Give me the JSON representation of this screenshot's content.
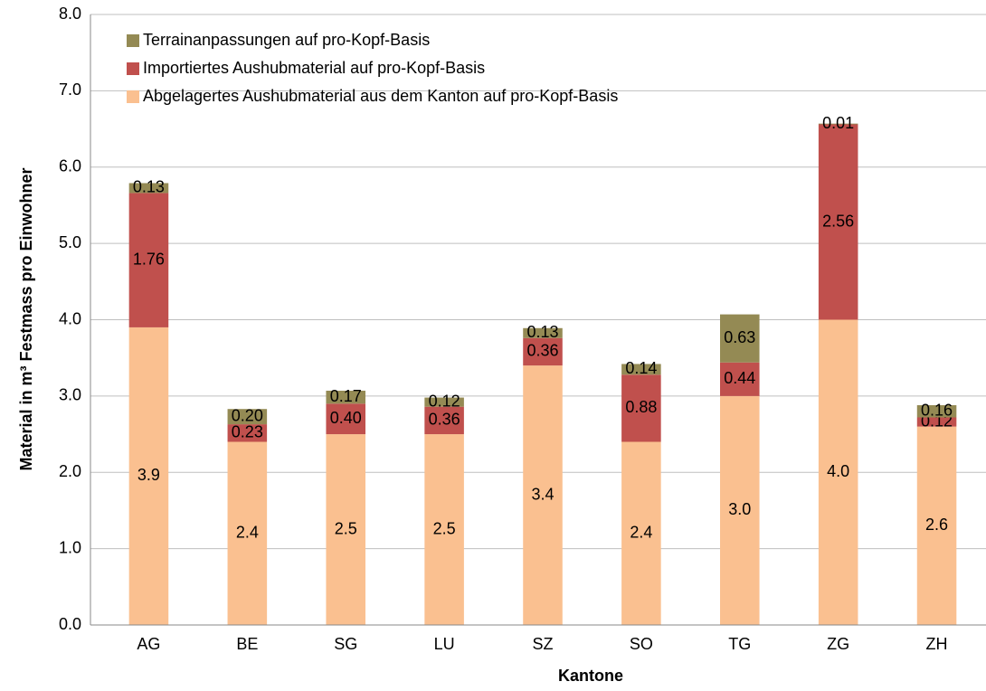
{
  "chart_data": {
    "type": "stacked_bar",
    "xlabel": "Kantone",
    "ylabel": "Material in m³ Festmass pro Einwohner",
    "categories": [
      "AG",
      "BE",
      "SG",
      "LU",
      "SZ",
      "SO",
      "TG",
      "ZG",
      "ZH"
    ],
    "series": [
      {
        "name": "Abgelagertes Aushubmaterial aus dem Kanton auf pro-Kopf-Basis",
        "color": "#fac090",
        "values": [
          3.9,
          2.4,
          2.5,
          2.5,
          3.4,
          2.4,
          3.0,
          4.0,
          2.6
        ],
        "value_labels": [
          "3.9",
          "2.4",
          "2.5",
          "2.5",
          "3.4",
          "2.4",
          "3.0",
          "4.0",
          "2.6"
        ]
      },
      {
        "name": "Importiertes Aushubmaterial auf pro-Kopf-Basis",
        "color": "#c0504d",
        "values": [
          1.76,
          0.23,
          0.4,
          0.36,
          0.36,
          0.88,
          0.44,
          2.56,
          0.12
        ],
        "value_labels": [
          "1.76",
          "0.23",
          "0.40",
          "0.36",
          "0.36",
          "0.88",
          "0.44",
          "2.56",
          "0.12"
        ]
      },
      {
        "name": "Terrainanpassungen auf pro-Kopf-Basis",
        "color": "#948a54",
        "values": [
          0.13,
          0.2,
          0.17,
          0.12,
          0.13,
          0.14,
          0.63,
          0.01,
          0.16
        ],
        "value_labels": [
          "0.13",
          "0.20",
          "0.17",
          "0.12",
          "0.13",
          "0.14",
          "0.63",
          "0.01",
          "0.16"
        ]
      }
    ],
    "ylim": [
      0,
      8
    ],
    "yticks": [
      {
        "value": 0,
        "label": "0.0"
      },
      {
        "value": 1,
        "label": "1.0"
      },
      {
        "value": 2,
        "label": "2.0"
      },
      {
        "value": 3,
        "label": "3.0"
      },
      {
        "value": 4,
        "label": "4.0"
      },
      {
        "value": 5,
        "label": "5.0"
      },
      {
        "value": 6,
        "label": "6.0"
      },
      {
        "value": 7,
        "label": "7.0"
      },
      {
        "value": 8,
        "label": "8.0"
      }
    ],
    "grid": true
  }
}
